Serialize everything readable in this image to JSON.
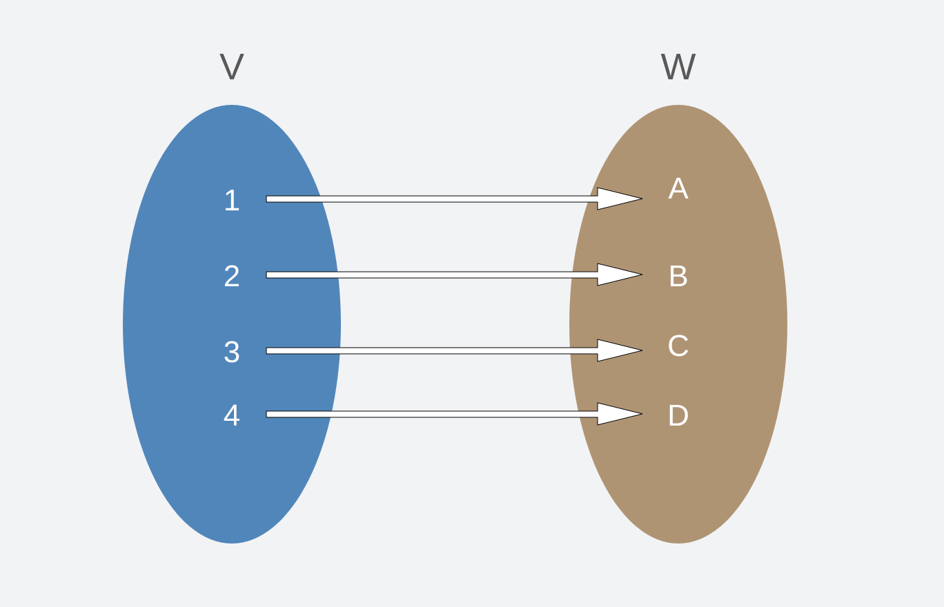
{
  "sets": {
    "left": {
      "label": "V",
      "color": "#5186ba",
      "elements": [
        "1",
        "2",
        "3",
        "4"
      ]
    },
    "right": {
      "label": "W",
      "color": "#af9474",
      "elements": [
        "A",
        "B",
        "C",
        "D"
      ]
    }
  },
  "mappings": [
    {
      "from": "1",
      "to": "A"
    },
    {
      "from": "2",
      "to": "B"
    },
    {
      "from": "3",
      "to": "C"
    },
    {
      "from": "4",
      "to": "D"
    }
  ],
  "colors": {
    "background": "#f2f3f5",
    "set_label": "#595959",
    "element_label": "#ffffff",
    "arrow_fill": "#ffffff",
    "arrow_stroke": "#000000"
  }
}
